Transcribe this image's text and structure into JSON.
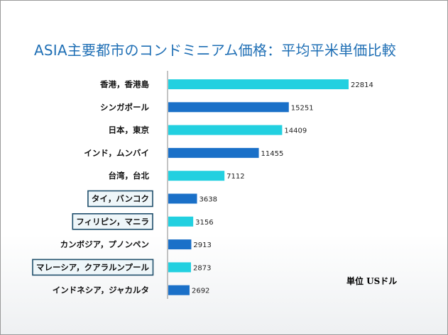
{
  "chart_data": {
    "type": "bar",
    "orientation": "horizontal",
    "title": "ASIA主要都市のコンドミニアム価格：平均平米単価比較",
    "unit_label": "単位 USドル",
    "categories": [
      "香港，香港島",
      "シンガポール",
      "日本，東京",
      "インド，ムンバイ",
      "台湾，台北",
      "タイ，バンコク",
      "フィリピン，マニラ",
      "カンボジア，プノンペン",
      "マレーシア，クアラルンプール",
      "インドネシア，ジャカルタ"
    ],
    "values": [
      22814,
      15251,
      14409,
      11455,
      7112,
      3638,
      3156,
      2913,
      2873,
      2692
    ],
    "bar_colors": [
      "#22d0e0",
      "#1a70c8",
      "#22d0e0",
      "#1a70c8",
      "#22d0e0",
      "#1a70c8",
      "#22d0e0",
      "#1a70c8",
      "#22d0e0",
      "#1a70c8"
    ],
    "highlighted": [
      "タイ，バンコク",
      "フィリピン，マニラ",
      "マレーシア，クアラルンプール"
    ],
    "xlim": [
      0,
      28000
    ],
    "grid": false,
    "legend": "none"
  }
}
